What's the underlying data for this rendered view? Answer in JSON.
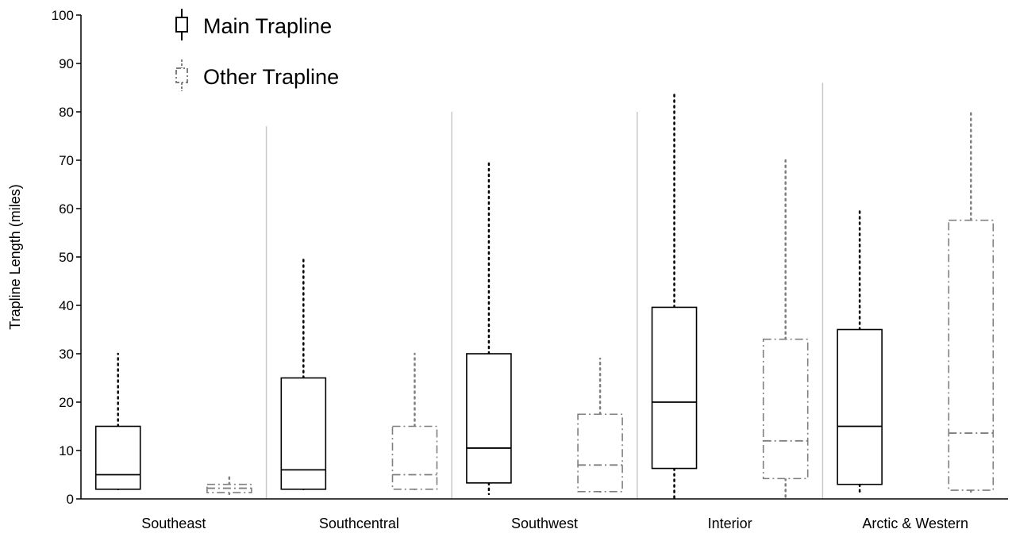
{
  "chart_data": {
    "type": "boxplot",
    "ylabel": "Trapline Length (miles)",
    "xlabel": "",
    "ylim": [
      0,
      100
    ],
    "yticks": [
      0,
      10,
      20,
      30,
      40,
      50,
      60,
      70,
      80,
      90,
      100
    ],
    "categories": [
      "Southeast",
      "Southcentral",
      "Southwest",
      "Interior",
      "Arctic & Western"
    ],
    "series": [
      {
        "name": "Main Trapline",
        "color": "#000000",
        "box_style": "solid",
        "whisker_style": "dotted",
        "boxes": [
          {
            "min": 2,
            "q1": 2,
            "median": 5,
            "q3": 15,
            "max": 30
          },
          {
            "min": 2,
            "q1": 2,
            "median": 6,
            "q3": 25,
            "max": 49.5
          },
          {
            "min": 1,
            "q1": 3.3,
            "median": 10.5,
            "q3": 30,
            "max": 69.5
          },
          {
            "min": 0.2,
            "q1": 6.3,
            "median": 20,
            "q3": 39.6,
            "max": 84.2
          },
          {
            "min": 0.8,
            "q1": 3,
            "median": 15,
            "q3": 35,
            "max": 59.5
          }
        ]
      },
      {
        "name": "Other Trapline",
        "color": "#7f7f7f",
        "box_style": "dash-dot",
        "whisker_style": "dotted",
        "boxes": [
          {
            "min": 1,
            "q1": 1.3,
            "median": 2.2,
            "q3": 3,
            "max": 5
          },
          {
            "min": 2,
            "q1": 2,
            "median": 5,
            "q3": 15,
            "max": 30
          },
          {
            "min": 1.5,
            "q1": 1.5,
            "median": 7,
            "q3": 17.5,
            "max": 29
          },
          {
            "min": 0,
            "q1": 4.2,
            "median": 12,
            "q3": 33,
            "max": 70
          },
          {
            "min": 1.5,
            "q1": 1.8,
            "median": 13.6,
            "q3": 57.6,
            "max": 80
          }
        ]
      }
    ],
    "legend": {
      "position": "top-left"
    },
    "grid": false,
    "separators": true
  }
}
